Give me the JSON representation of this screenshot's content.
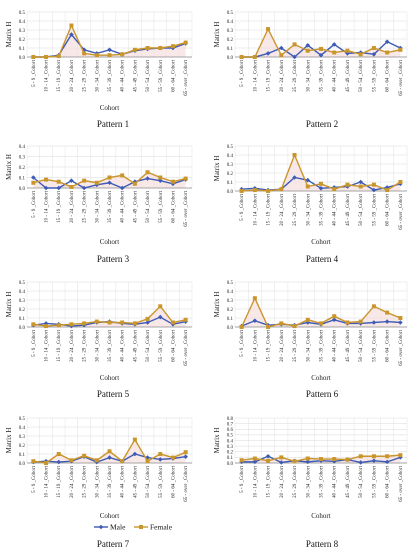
{
  "colors": {
    "male": "#3e5bb5",
    "female": "#c9962c",
    "grid": "#d9d9d9",
    "axis": "#8c8c8c",
    "area_shadow": "#f6dede"
  },
  "legend": {
    "male_label": "Male",
    "female_label": "Female"
  },
  "chart_data": [
    {
      "type": "line",
      "caption": "Pattern 1",
      "xlabel": "Cohort",
      "ylabel": "Matrix H",
      "ylim": [
        0,
        0.5
      ],
      "yticks": [
        "0.0",
        "0.1",
        "0.2",
        "0.3",
        "0.4",
        "0.5"
      ],
      "categories": [
        "5 - 9 _Cohort",
        "10 - 14 _Cohort",
        "15 - 19 _Cohort",
        "20 - 24 _Cohort",
        "25 - 29 _Cohort",
        "30 - 34 _Cohort",
        "35 - 39 _Cohort",
        "40 - 44 _Cohort",
        "45 - 49 _Cohort",
        "50 - 54 _Cohort",
        "55 - 59 _Cohort",
        "60 - 64 _Cohort",
        "65 - over _Cohort"
      ],
      "series": [
        {
          "name": "Male",
          "values": [
            0.0,
            0.0,
            0.02,
            0.25,
            0.08,
            0.04,
            0.08,
            0.03,
            0.07,
            0.09,
            0.1,
            0.1,
            0.15
          ]
        },
        {
          "name": "Female",
          "values": [
            0.0,
            0.0,
            0.01,
            0.35,
            0.04,
            0.02,
            0.02,
            0.03,
            0.08,
            0.1,
            0.1,
            0.12,
            0.16
          ]
        }
      ]
    },
    {
      "type": "line",
      "caption": "Pattern 2",
      "xlabel": "",
      "ylabel": "Matrix H",
      "ylim": [
        0,
        0.5
      ],
      "yticks": [
        "0.0",
        "0.1",
        "0.2",
        "0.3",
        "0.4",
        "0.5"
      ],
      "categories": [
        "5 - 9 _Cohort",
        "10 - 14 _Cohort",
        "15 - 19 _Cohort",
        "20 - 24 _Cohort",
        "25 - 29 _Cohort",
        "30 - 34 _Cohort",
        "35 - 39 _Cohort",
        "40 - 44 _Cohort",
        "45 - 49 _Cohort",
        "50 - 54 _Cohort",
        "55 - 59 _Cohort",
        "60 - 64 _Cohort",
        "65 - over _Cohort"
      ],
      "series": [
        {
          "name": "Male",
          "values": [
            0.0,
            0.0,
            0.04,
            0.1,
            0.0,
            0.13,
            0.02,
            0.14,
            0.04,
            0.05,
            0.03,
            0.17,
            0.1
          ]
        },
        {
          "name": "Female",
          "values": [
            0.0,
            0.0,
            0.31,
            0.02,
            0.14,
            0.07,
            0.09,
            0.05,
            0.07,
            0.03,
            0.1,
            0.05,
            0.08
          ]
        }
      ]
    },
    {
      "type": "line",
      "caption": "Pattern 3",
      "xlabel": "Cohort",
      "ylabel": "Matrix H",
      "ylim": [
        0,
        0.4
      ],
      "yticks": [
        "0.0",
        "0.1",
        "0.2",
        "0.3",
        "0.4"
      ],
      "categories": [
        "5 - 9 _Cohort",
        "10 - 14 _Cohort",
        "15 - 19 _Cohort",
        "20 - 24 _Cohort",
        "25 - 29 _Cohort",
        "30 - 34 _Cohort",
        "35 - 39 _Cohort",
        "40 - 44 _Cohort",
        "45 - 49 _Cohort",
        "50 - 54 _Cohort",
        "55 - 59 _Cohort",
        "60 - 64 _Cohort",
        "65 - over _Cohort"
      ],
      "series": [
        {
          "name": "Male",
          "values": [
            0.1,
            0.0,
            0.0,
            0.07,
            0.0,
            0.03,
            0.05,
            0.0,
            0.06,
            0.09,
            0.07,
            0.04,
            0.08
          ]
        },
        {
          "name": "Female",
          "values": [
            0.05,
            0.08,
            0.06,
            0.01,
            0.07,
            0.05,
            0.1,
            0.12,
            0.04,
            0.15,
            0.1,
            0.06,
            0.09
          ]
        }
      ]
    },
    {
      "type": "line",
      "caption": "Pattern 4",
      "xlabel": "Cohort",
      "ylabel": "Matrix H",
      "ylim": [
        0,
        0.5
      ],
      "yticks": [
        "0.0",
        "0.1",
        "0.2",
        "0.3",
        "0.4",
        "0.5"
      ],
      "categories": [
        "5 - 9 _Cohort",
        "10 - 14 _Cohort",
        "15 - 19 _Cohort",
        "20 - 24 _Cohort",
        "25 - 29 _Cohort",
        "30 - 34 _Cohort",
        "35 - 39 _Cohort",
        "40 - 44 _Cohort",
        "45 - 49 _Cohort",
        "50 - 54 _Cohort",
        "55 - 59 _Cohort",
        "60 - 64 _Cohort",
        "65 - over _Cohort"
      ],
      "series": [
        {
          "name": "Male",
          "values": [
            0.02,
            0.03,
            0.01,
            0.02,
            0.15,
            0.12,
            0.03,
            0.04,
            0.05,
            0.1,
            0.01,
            0.04,
            0.08
          ]
        },
        {
          "name": "Female",
          "values": [
            0.0,
            0.01,
            0.0,
            0.02,
            0.4,
            0.05,
            0.08,
            0.02,
            0.07,
            0.05,
            0.07,
            0.01,
            0.1
          ]
        }
      ]
    },
    {
      "type": "line",
      "caption": "Pattern 5",
      "xlabel": "Cohort",
      "ylabel": "Matrix H",
      "ylim": [
        0,
        0.5
      ],
      "yticks": [
        "0.0",
        "0.1",
        "0.2",
        "0.3",
        "0.4",
        "0.5"
      ],
      "categories": [
        "5 - 9 _Cohort",
        "10 - 14 _Cohort",
        "15 - 19 _Cohort",
        "20 - 24 _Cohort",
        "25 - 29 _Cohort",
        "30 - 34 _Cohort",
        "35 - 39 _Cohort",
        "40 - 44 _Cohort",
        "45 - 49 _Cohort",
        "50 - 54 _Cohort",
        "55 - 59 _Cohort",
        "60 - 64 _Cohort",
        "65 - over _Cohort"
      ],
      "series": [
        {
          "name": "Male",
          "values": [
            0.02,
            0.04,
            0.03,
            0.01,
            0.02,
            0.05,
            0.06,
            0.04,
            0.03,
            0.05,
            0.11,
            0.03,
            0.06
          ]
        },
        {
          "name": "Female",
          "values": [
            0.03,
            0.01,
            0.02,
            0.03,
            0.04,
            0.06,
            0.05,
            0.05,
            0.04,
            0.09,
            0.23,
            0.05,
            0.08
          ]
        }
      ]
    },
    {
      "type": "line",
      "caption": "Pattern 6",
      "xlabel": "Cohort",
      "ylabel": "Matrix H",
      "ylim": [
        0,
        0.5
      ],
      "yticks": [
        "0.0",
        "0.1",
        "0.2",
        "0.3",
        "0.4",
        "0.5"
      ],
      "categories": [
        "5 - 9 _Cohort",
        "10 - 14 _Cohort",
        "15 - 19 _Cohort",
        "20 - 24 _Cohort",
        "25 - 29 _Cohort",
        "30 - 34 _Cohort",
        "35 - 39 _Cohort",
        "40 - 44 _Cohort",
        "45 - 49 _Cohort",
        "50 - 54 _Cohort",
        "55 - 59 _Cohort",
        "60 - 64 _Cohort",
        "65 - over _Cohort"
      ],
      "series": [
        {
          "name": "Male",
          "values": [
            0.01,
            0.07,
            0.02,
            0.03,
            0.02,
            0.05,
            0.03,
            0.08,
            0.04,
            0.04,
            0.05,
            0.06,
            0.05
          ]
        },
        {
          "name": "Female",
          "values": [
            0.0,
            0.32,
            0.0,
            0.04,
            0.01,
            0.08,
            0.04,
            0.12,
            0.05,
            0.06,
            0.23,
            0.16,
            0.1
          ]
        }
      ]
    },
    {
      "type": "line",
      "caption": "Pattern 7",
      "xlabel": "Cohort",
      "ylabel": "Matrix H",
      "ylim": [
        0,
        0.5
      ],
      "yticks": [
        "0.0",
        "0.1",
        "0.2",
        "0.3",
        "0.4",
        "0.5"
      ],
      "categories": [
        "5 - 9 _Cohort",
        "10 - 14 _Cohort",
        "15 - 19 _Cohort",
        "20 - 24 _Cohort",
        "25 - 29 _Cohort",
        "30 - 34 _Cohort",
        "35 - 39 _Cohort",
        "40 - 44 _Cohort",
        "45 - 49 _Cohort",
        "50 - 54 _Cohort",
        "55 - 59 _Cohort",
        "60 - 64 _Cohort",
        "65 - over _Cohort"
      ],
      "series": [
        {
          "name": "Male",
          "values": [
            0.01,
            0.02,
            0.01,
            0.02,
            0.07,
            0.01,
            0.06,
            0.02,
            0.1,
            0.06,
            0.04,
            0.05,
            0.07
          ]
        },
        {
          "name": "Female",
          "values": [
            0.02,
            0.0,
            0.1,
            0.03,
            0.08,
            0.03,
            0.13,
            0.02,
            0.26,
            0.02,
            0.1,
            0.06,
            0.12
          ]
        }
      ]
    },
    {
      "type": "line",
      "caption": "Pattern 8",
      "xlabel": "Cohort",
      "ylabel": "Matrix H",
      "ylim": [
        0,
        0.8
      ],
      "yticks": [
        "0.0",
        "0.1",
        "0.2",
        "0.3",
        "0.4",
        "0.5",
        "0.6",
        "0.7",
        "0.8"
      ],
      "categories": [
        "5 - 9 _Cohort",
        "10 - 14 _Cohort",
        "15 - 19 _Cohort",
        "20 - 24 _Cohort",
        "25 - 29 _Cohort",
        "30 - 34 _Cohort",
        "35 - 39 _Cohort",
        "40 - 44 _Cohort",
        "45 - 49 _Cohort",
        "50 - 54 _Cohort",
        "55 - 59 _Cohort",
        "60 - 64 _Cohort",
        "65 - over _Cohort"
      ],
      "series": [
        {
          "name": "Male",
          "values": [
            0.02,
            0.02,
            0.12,
            0.01,
            0.04,
            0.02,
            0.04,
            0.03,
            0.06,
            0.01,
            0.04,
            0.02,
            0.1
          ]
        },
        {
          "name": "Female",
          "values": [
            0.05,
            0.08,
            0.04,
            0.1,
            0.03,
            0.08,
            0.07,
            0.07,
            0.06,
            0.12,
            0.12,
            0.12,
            0.14
          ]
        }
      ]
    }
  ]
}
